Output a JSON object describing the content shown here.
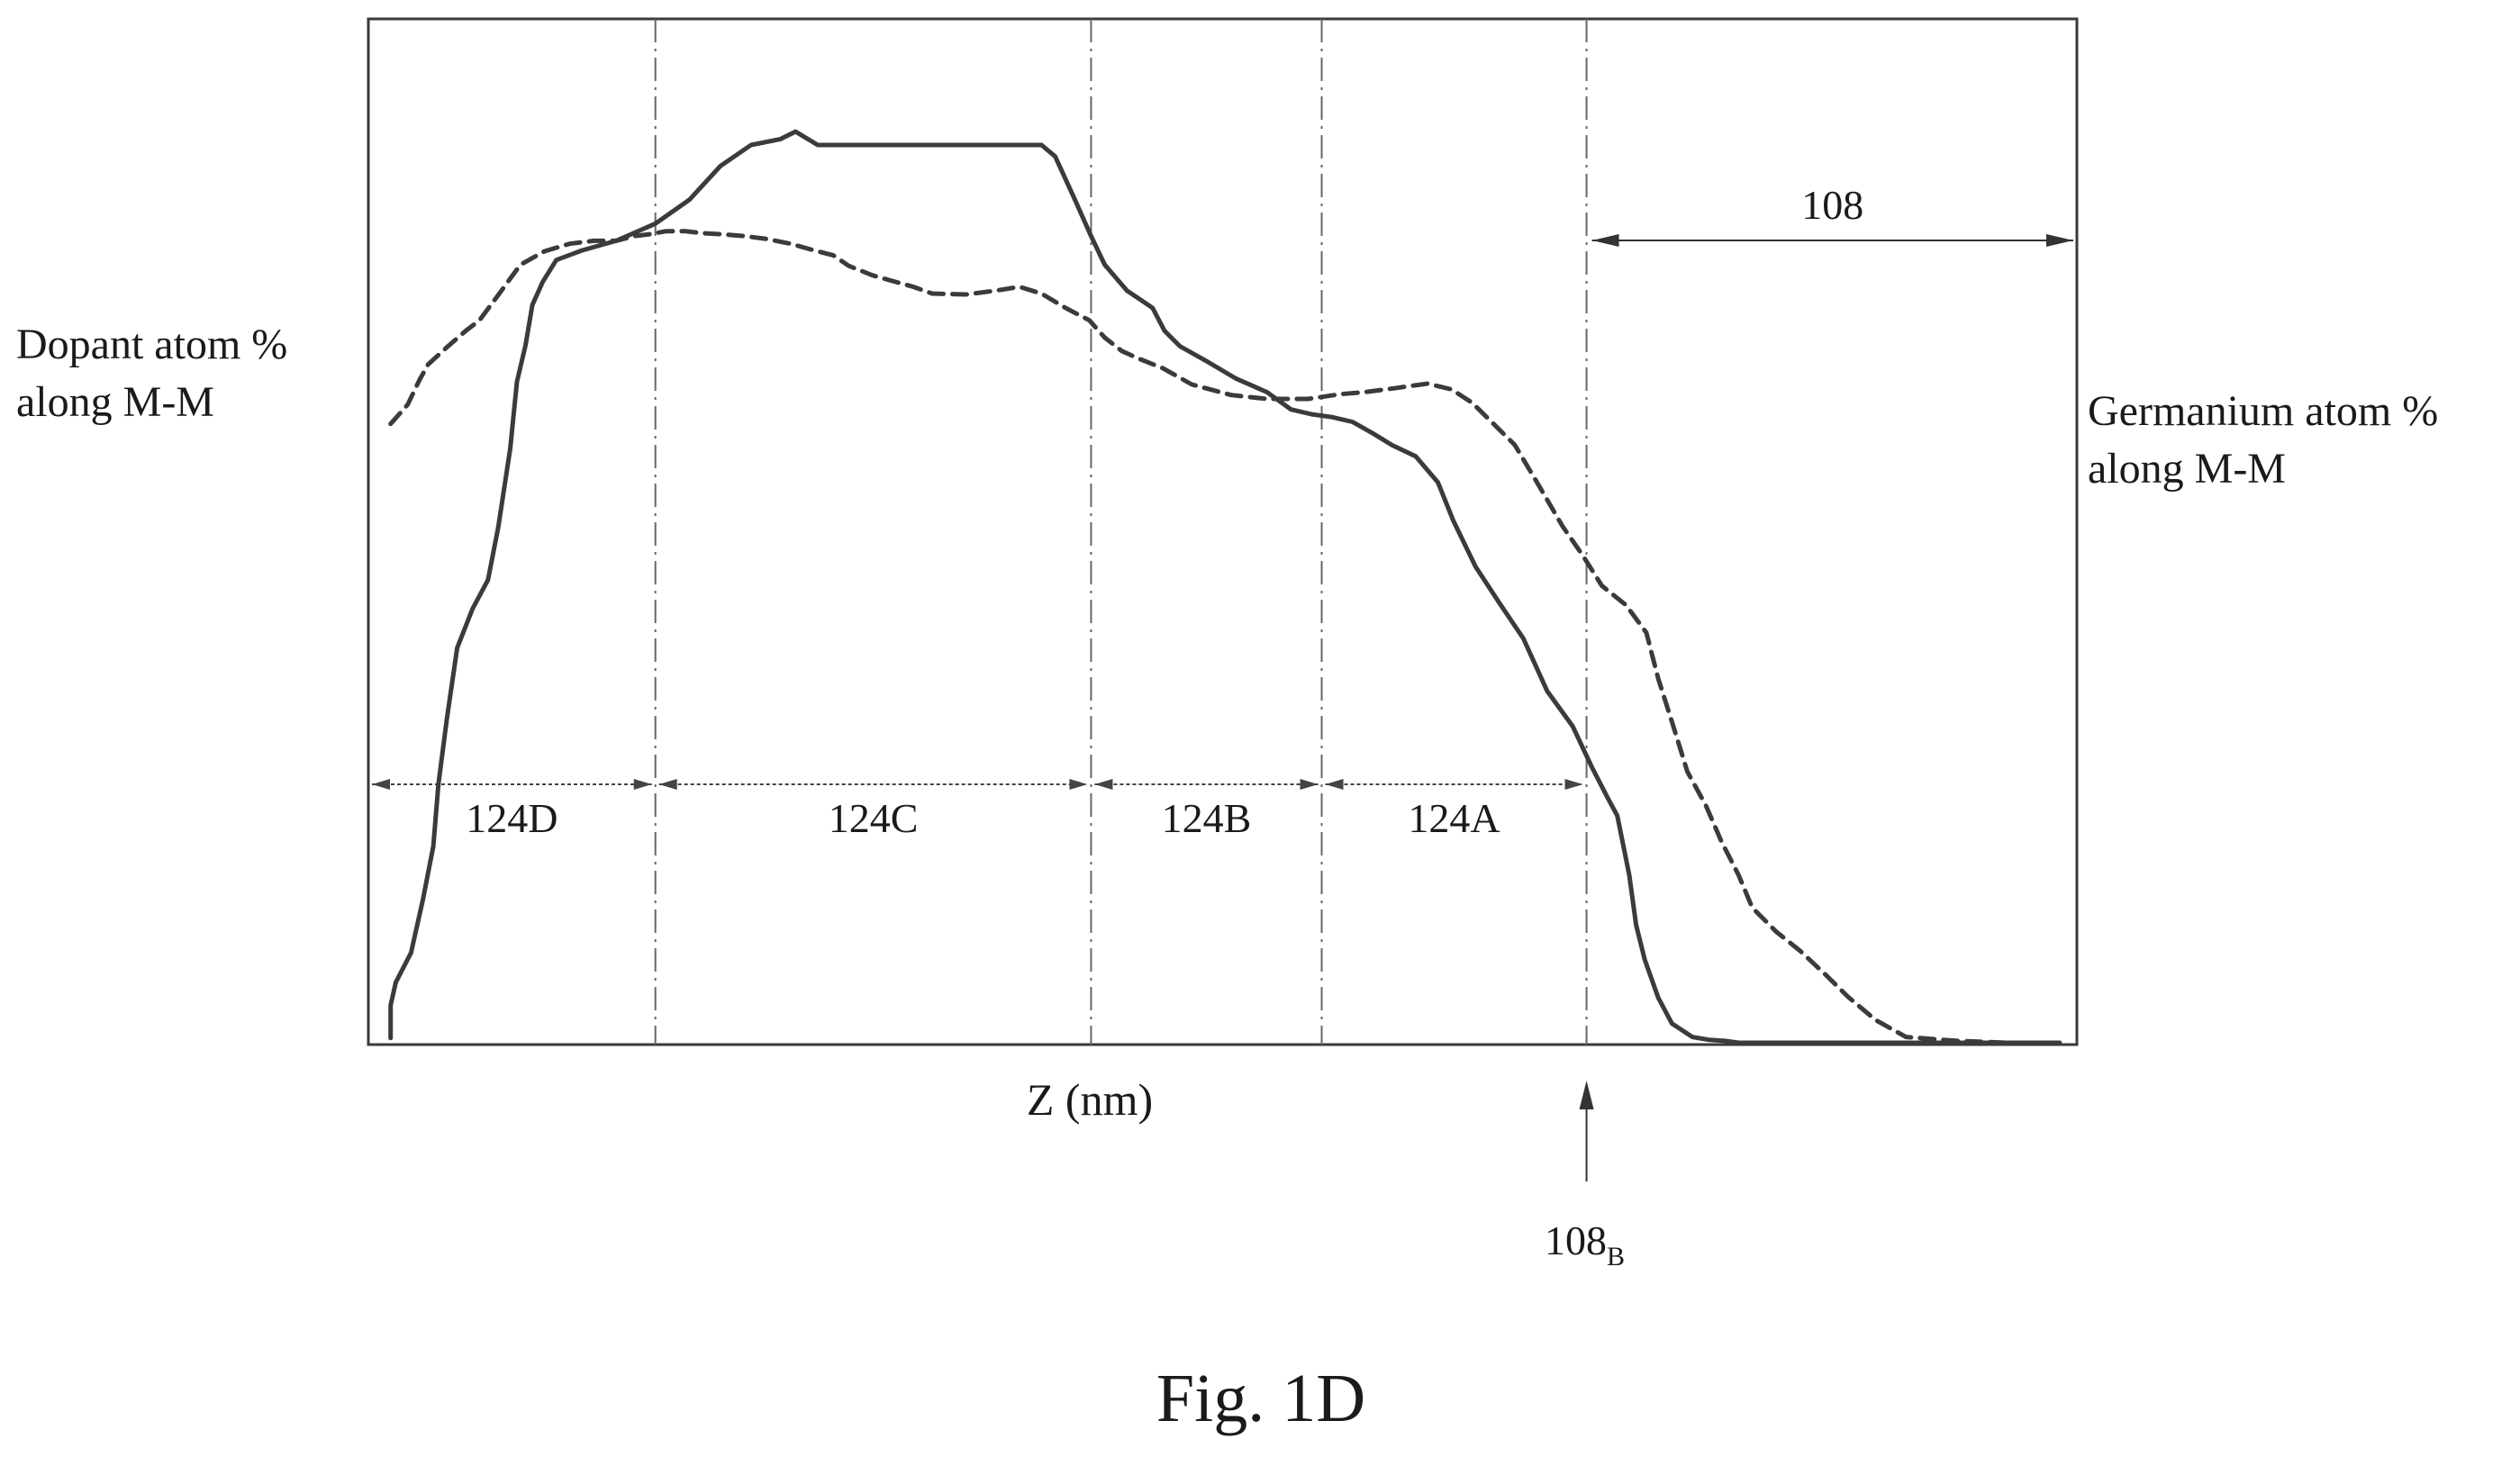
{
  "chart_data": {
    "type": "line",
    "title": "",
    "xlabel": "Z (nm)",
    "ylabel_left": [
      "Dopant atom %",
      "along M-M"
    ],
    "ylabel_right": [
      "Germanium atom %",
      "along M-M"
    ],
    "xlim": [
      0,
      100
    ],
    "ylim": [
      0,
      100
    ],
    "grid": false,
    "region_boundaries": [
      0,
      16.8,
      42.3,
      55.8,
      71.3,
      100
    ],
    "regions": [
      {
        "label": "124D",
        "from": 0,
        "to": 16.8
      },
      {
        "label": "124C",
        "from": 16.8,
        "to": 42.3
      },
      {
        "label": "124B",
        "from": 42.3,
        "to": 55.8
      },
      {
        "label": "124A",
        "from": 55.8,
        "to": 71.3
      }
    ],
    "layer_108": {
      "label": "108",
      "from": 71.3,
      "to": 100
    },
    "boundary_marker": {
      "label": "108",
      "subscript": "B",
      "x": 71.3
    },
    "series": [
      {
        "style": "solid",
        "x": [
          1.3,
          1.3,
          1.6,
          2.5,
          3.2,
          3.8,
          4.1,
          4.6,
          5.2,
          6.1,
          7.0,
          7.6,
          8.3,
          8.7,
          9.2,
          9.6,
          10.2,
          11.0,
          12.5,
          14.5,
          16.8,
          18.8,
          20.6,
          22.4,
          24.1,
          25.0,
          26.3,
          28.5,
          30.5,
          32.6,
          34.5,
          37.5,
          39.4,
          40.2,
          41.3,
          42.3,
          43.1,
          44.4,
          45.9,
          46.6,
          47.5,
          49.0,
          50.8,
          52.6,
          54.0,
          55.2,
          56.4,
          57.6,
          58.8,
          59.9,
          61.3,
          62.6,
          63.5,
          64.8,
          66.2,
          67.6,
          69.0,
          70.5,
          71.6,
          72.5,
          73.1,
          73.8,
          74.2,
          74.7,
          75.5,
          76.3,
          77.5,
          78.5,
          79.4,
          80.2,
          81.5,
          83.5,
          87.0,
          91.0,
          95.0,
          99.0
        ],
        "y": [
          0.5,
          3.9,
          6.3,
          9.4,
          15.0,
          20.5,
          27.0,
          33.9,
          41.2,
          45.3,
          48.3,
          53.8,
          62.0,
          69.0,
          72.8,
          77.0,
          79.4,
          81.7,
          82.7,
          83.7,
          85.5,
          88.0,
          91.5,
          93.7,
          94.3,
          95.1,
          93.7,
          93.7,
          93.7,
          93.7,
          93.7,
          93.7,
          93.7,
          92.5,
          88.2,
          84.2,
          81.2,
          78.5,
          76.7,
          74.3,
          72.7,
          71.2,
          69.3,
          67.9,
          66.1,
          65.6,
          65.3,
          64.8,
          63.6,
          62.4,
          61.2,
          58.5,
          54.5,
          49.7,
          45.9,
          42.2,
          36.7,
          33.0,
          28.8,
          25.7,
          23.7,
          17.5,
          12.3,
          8.7,
          4.7,
          2.0,
          0.6,
          0.3,
          0.2,
          0.0,
          0.0,
          0.0,
          0.0,
          0.0,
          0.0,
          0.0
        ]
      },
      {
        "style": "dashed",
        "x": [
          1.3,
          2.3,
          3.0,
          3.5,
          4.6,
          5.7,
          6.5,
          7.5,
          8.9,
          10.3,
          11.8,
          13.2,
          14.5,
          15.6,
          16.5,
          17.4,
          18.6,
          19.5,
          20.6,
          22.0,
          23.3,
          24.7,
          26.1,
          27.2,
          28.1,
          29.5,
          30.5,
          31.9,
          33.0,
          35.0,
          36.7,
          38.1,
          39.4,
          40.8,
          42.2,
          43.1,
          44.1,
          45.1,
          46.5,
          48.2,
          50.5,
          52.6,
          55.0,
          56.9,
          58.3,
          60.0,
          62.0,
          63.4,
          64.6,
          65.8,
          67.1,
          68.5,
          69.9,
          71.1,
          72.2,
          73.6,
          74.8,
          75.5,
          76.3,
          77.2,
          78.3,
          79.2,
          80.2,
          81.0,
          82.4,
          83.8,
          85.3,
          86.6,
          88.2,
          90.0,
          93.0,
          96.0,
          99.0
        ],
        "y": [
          64.6,
          66.6,
          69.2,
          70.8,
          72.6,
          74.3,
          75.4,
          77.8,
          81.2,
          82.6,
          83.4,
          83.7,
          83.7,
          84.2,
          84.4,
          84.7,
          84.7,
          84.5,
          84.4,
          84.2,
          83.9,
          83.4,
          82.7,
          82.2,
          81.1,
          80.1,
          79.6,
          78.9,
          78.2,
          78.1,
          78.5,
          78.9,
          78.2,
          76.7,
          75.4,
          73.6,
          72.2,
          71.4,
          70.4,
          68.7,
          67.6,
          67.2,
          67.2,
          67.7,
          67.9,
          68.3,
          68.8,
          68.2,
          66.8,
          64.7,
          62.4,
          58.2,
          53.9,
          50.8,
          47.7,
          45.7,
          42.8,
          38.0,
          33.5,
          28.3,
          24.7,
          21.0,
          17.5,
          14.1,
          11.6,
          9.6,
          7.1,
          4.8,
          2.4,
          0.6,
          0.2,
          0.0,
          0.0
        ]
      }
    ]
  },
  "figure_caption": "Fig. 1D"
}
